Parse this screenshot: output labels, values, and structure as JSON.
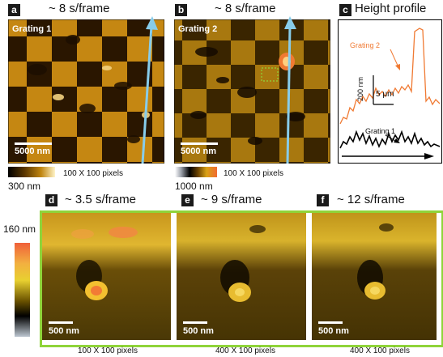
{
  "panels": {
    "a": {
      "label": "a",
      "title": "~ 8 s/frame",
      "inset": "Grating 1",
      "scale": "5000 nm",
      "pixels": "100 X 100 pixels",
      "cbar_max": "300 nm"
    },
    "b": {
      "label": "b",
      "title": "~ 8 s/frame",
      "inset": "Grating 2",
      "scale": "5000 nm",
      "pixels": "100 X 100 pixels",
      "cbar_max": "1000 nm"
    },
    "c": {
      "label": "c",
      "title": "Height profile",
      "series_1": "Grating 2",
      "series_2": "Grating 1",
      "vscale": "200 nm",
      "hscale": "5 μm"
    },
    "d": {
      "label": "d",
      "title": "~ 3.5 s/frame",
      "scale": "500 nm",
      "pixels": "100 X 100 pixels"
    },
    "e": {
      "label": "e",
      "title": "~ 9 s/frame",
      "scale": "500 nm",
      "pixels": "400 X 100 pixels"
    },
    "f": {
      "label": "f",
      "title": "~ 12 s/frame",
      "scale": "500 nm",
      "pixels": "400 X 100 pixels"
    }
  },
  "shared_colorbar": {
    "max": "160 nm"
  },
  "colors": {
    "frame_green": "#8fd43a",
    "arrow_blue": "#87ccea",
    "profile_orange": "#f07a33"
  }
}
